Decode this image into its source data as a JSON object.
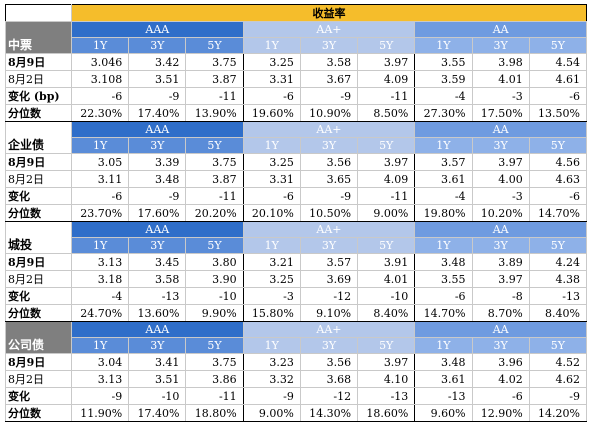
{
  "title": "收益率",
  "rating_headers": [
    "AAA",
    "AA+",
    "AA"
  ],
  "tenors": [
    "1Y",
    "3Y",
    "5Y"
  ],
  "sections": [
    {
      "name": "中票",
      "rows": [
        {
          "label": "8月9日",
          "values": [
            "3.046",
            "3.42",
            "3.75",
            "3.25",
            "3.58",
            "3.97",
            "3.55",
            "3.98",
            "4.54"
          ]
        },
        {
          "label": "8月2日",
          "values": [
            "3.108",
            "3.51",
            "3.87",
            "3.31",
            "3.67",
            "4.09",
            "3.59",
            "4.01",
            "4.61"
          ]
        },
        {
          "label": "变化 (bp)",
          "values": [
            "-6",
            "-9",
            "-11",
            "-6",
            "-9",
            "-11",
            "-4",
            "-3",
            "-6"
          ]
        },
        {
          "label": "分位数",
          "values": [
            "22.30%",
            "17.40%",
            "13.90%",
            "19.60%",
            "10.90%",
            "8.50%",
            "27.30%",
            "17.50%",
            "13.50%"
          ]
        }
      ]
    },
    {
      "name": "企业债",
      "rows": [
        {
          "label": "8月9日",
          "values": [
            "3.05",
            "3.39",
            "3.75",
            "3.25",
            "3.56",
            "3.97",
            "3.57",
            "3.97",
            "4.56"
          ]
        },
        {
          "label": "8月2日",
          "values": [
            "3.11",
            "3.48",
            "3.87",
            "3.31",
            "3.65",
            "4.09",
            "3.61",
            "4.00",
            "4.63"
          ]
        },
        {
          "label": "变化",
          "values": [
            "-6",
            "-9",
            "-11",
            "-6",
            "-9",
            "-11",
            "-4",
            "-3",
            "-6"
          ]
        },
        {
          "label": "分位数",
          "values": [
            "23.70%",
            "17.60%",
            "20.20%",
            "20.10%",
            "10.50%",
            "9.00%",
            "19.80%",
            "10.20%",
            "14.70%"
          ]
        }
      ]
    },
    {
      "name": "城投",
      "rows": [
        {
          "label": "8月9日",
          "values": [
            "3.13",
            "3.45",
            "3.80",
            "3.21",
            "3.57",
            "3.91",
            "3.48",
            "3.89",
            "4.24"
          ]
        },
        {
          "label": "8月2日",
          "values": [
            "3.18",
            "3.58",
            "3.90",
            "3.25",
            "3.69",
            "4.01",
            "3.55",
            "3.97",
            "4.38"
          ]
        },
        {
          "label": "变化",
          "values": [
            "-4",
            "-13",
            "-10",
            "-3",
            "-12",
            "-10",
            "-6",
            "-8",
            "-13"
          ]
        },
        {
          "label": "分位数",
          "values": [
            "24.70%",
            "13.60%",
            "9.90%",
            "15.80%",
            "9.10%",
            "8.40%",
            "14.70%",
            "8.70%",
            "8.40%"
          ]
        }
      ]
    },
    {
      "name": "公司债",
      "rows": [
        {
          "label": "8月9日",
          "values": [
            "3.04",
            "3.41",
            "3.75",
            "3.23",
            "3.56",
            "3.97",
            "3.48",
            "3.96",
            "4.52"
          ]
        },
        {
          "label": "8月2日",
          "values": [
            "3.13",
            "3.51",
            "3.86",
            "3.32",
            "3.68",
            "4.10",
            "3.61",
            "4.02",
            "4.62"
          ]
        },
        {
          "label": "变化",
          "values": [
            "-9",
            "-10",
            "-11",
            "-9",
            "-12",
            "-13",
            "-13",
            "-6",
            "-9"
          ]
        },
        {
          "label": "分位数",
          "values": [
            "11.90%",
            "17.40%",
            "18.80%",
            "9.00%",
            "14.30%",
            "18.60%",
            "9.60%",
            "12.90%",
            "14.20%"
          ]
        }
      ]
    }
  ]
}
